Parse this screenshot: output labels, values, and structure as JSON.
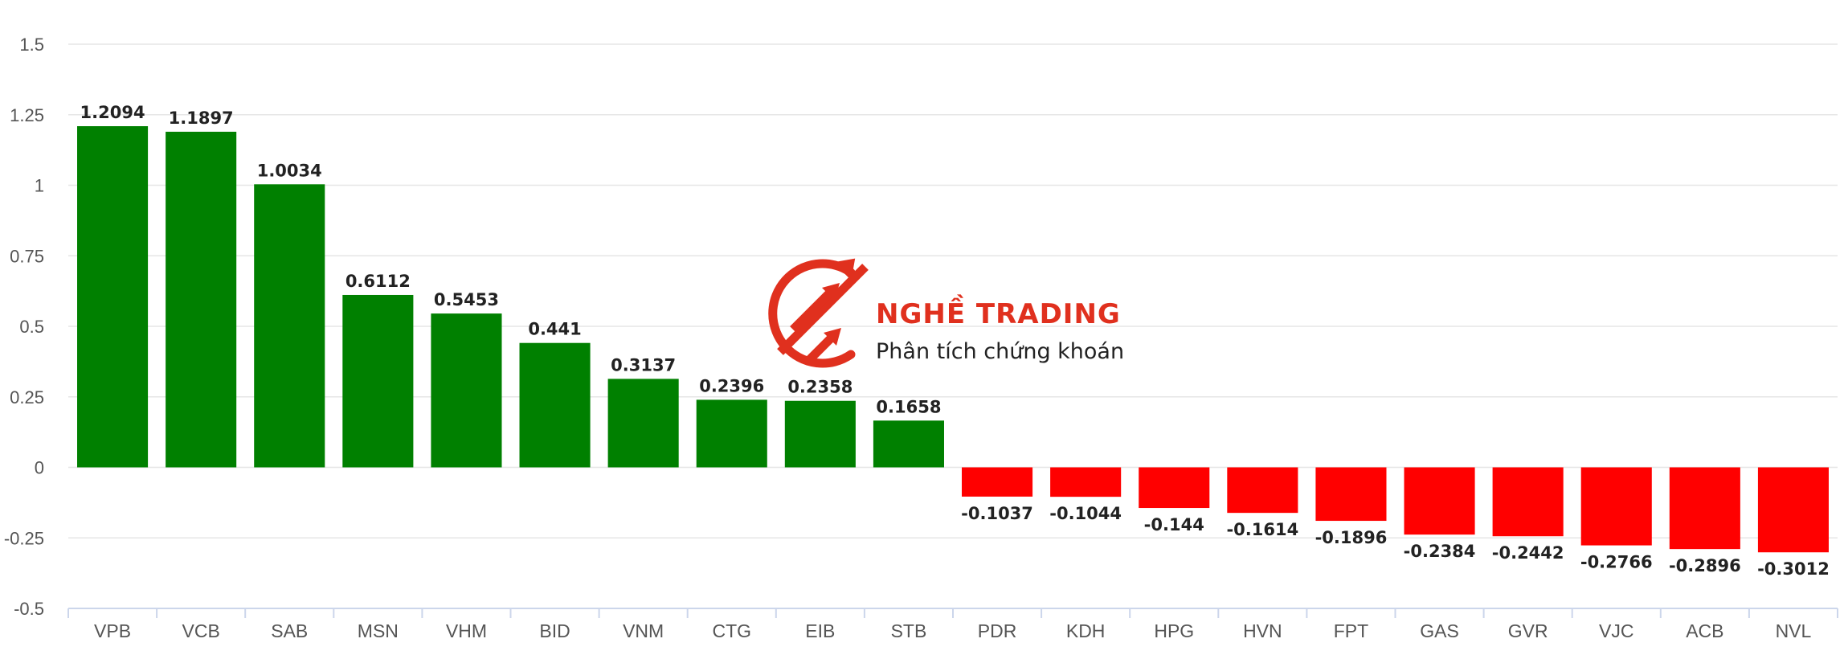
{
  "chart_data": {
    "type": "bar",
    "categories": [
      "VPB",
      "VCB",
      "SAB",
      "MSN",
      "VHM",
      "BID",
      "VNM",
      "CTG",
      "EIB",
      "STB",
      "PDR",
      "KDH",
      "HPG",
      "HVN",
      "FPT",
      "GAS",
      "GVR",
      "VJC",
      "ACB",
      "NVL"
    ],
    "values": [
      1.2094,
      1.1897,
      1.0034,
      0.6112,
      0.5453,
      0.441,
      0.3137,
      0.2396,
      0.2358,
      0.1658,
      -0.1037,
      -0.1044,
      -0.144,
      -0.1614,
      -0.1896,
      -0.2384,
      -0.2442,
      -0.2766,
      -0.2896,
      -0.3012
    ],
    "value_labels": [
      "1.2094",
      "1.1897",
      "1.0034",
      "0.6112",
      "0.5453",
      "0.441",
      "0.3137",
      "0.2396",
      "0.2358",
      "0.1658",
      "-0.1037",
      "-0.1044",
      "-0.144",
      "-0.1614",
      "-0.1896",
      "-0.2384",
      "-0.2442",
      "-0.2766",
      "-0.2896",
      "-0.3012"
    ],
    "ylim": [
      -0.5,
      1.5
    ],
    "yticks": [
      "1.5",
      "1.25",
      "1",
      "0.75",
      "0.5",
      "0.25",
      "0",
      "-0.25",
      "-0.5"
    ],
    "ytick_values": [
      1.5,
      1.25,
      1,
      0.75,
      0.5,
      0.25,
      0,
      -0.25,
      -0.5
    ],
    "grid": true,
    "legend": "none",
    "colors": {
      "positive": "#008000",
      "negative": "#ff0000",
      "grid": "#e6e6e6",
      "axis": "#ccd6eb"
    }
  },
  "watermark": {
    "brand": "NGHỀ TRADING",
    "tagline": "Phân tích chứng khoán",
    "brand_color": "#e0301e",
    "icon": "logo-arrows-icon"
  }
}
